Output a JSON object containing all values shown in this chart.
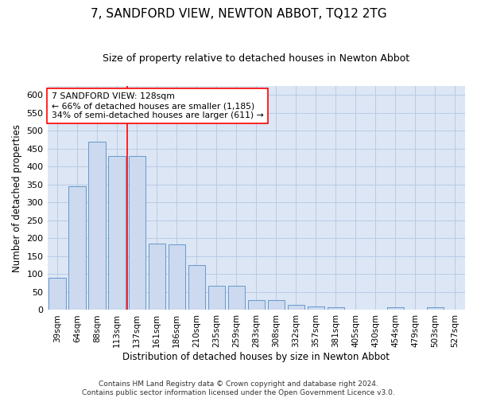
{
  "title": "7, SANDFORD VIEW, NEWTON ABBOT, TQ12 2TG",
  "subtitle": "Size of property relative to detached houses in Newton Abbot",
  "xlabel": "Distribution of detached houses by size in Newton Abbot",
  "ylabel": "Number of detached properties",
  "categories": [
    "39sqm",
    "64sqm",
    "88sqm",
    "113sqm",
    "137sqm",
    "161sqm",
    "186sqm",
    "210sqm",
    "235sqm",
    "259sqm",
    "283sqm",
    "308sqm",
    "332sqm",
    "357sqm",
    "381sqm",
    "405sqm",
    "430sqm",
    "454sqm",
    "479sqm",
    "503sqm",
    "527sqm"
  ],
  "values": [
    90,
    345,
    470,
    430,
    430,
    185,
    183,
    125,
    68,
    68,
    28,
    28,
    15,
    10,
    8,
    0,
    0,
    8,
    0,
    8,
    0
  ],
  "bar_color": "#ccd9ee",
  "bar_edge_color": "#6699cc",
  "grid_color": "#b8cce4",
  "ref_line_color": "red",
  "ref_line_x": 3.5,
  "annotation_text": "7 SANDFORD VIEW: 128sqm\n← 66% of detached houses are smaller (1,185)\n34% of semi-detached houses are larger (611) →",
  "annotation_box_color": "white",
  "annotation_box_edge": "red",
  "footer": "Contains HM Land Registry data © Crown copyright and database right 2024.\nContains public sector information licensed under the Open Government Licence v3.0.",
  "ylim": [
    0,
    625
  ],
  "yticks": [
    0,
    50,
    100,
    150,
    200,
    250,
    300,
    350,
    400,
    450,
    500,
    550,
    600
  ],
  "title_fontsize": 11,
  "subtitle_fontsize": 9,
  "xlabel_fontsize": 8.5,
  "ylabel_fontsize": 8.5,
  "bg_color": "#dce6f5"
}
